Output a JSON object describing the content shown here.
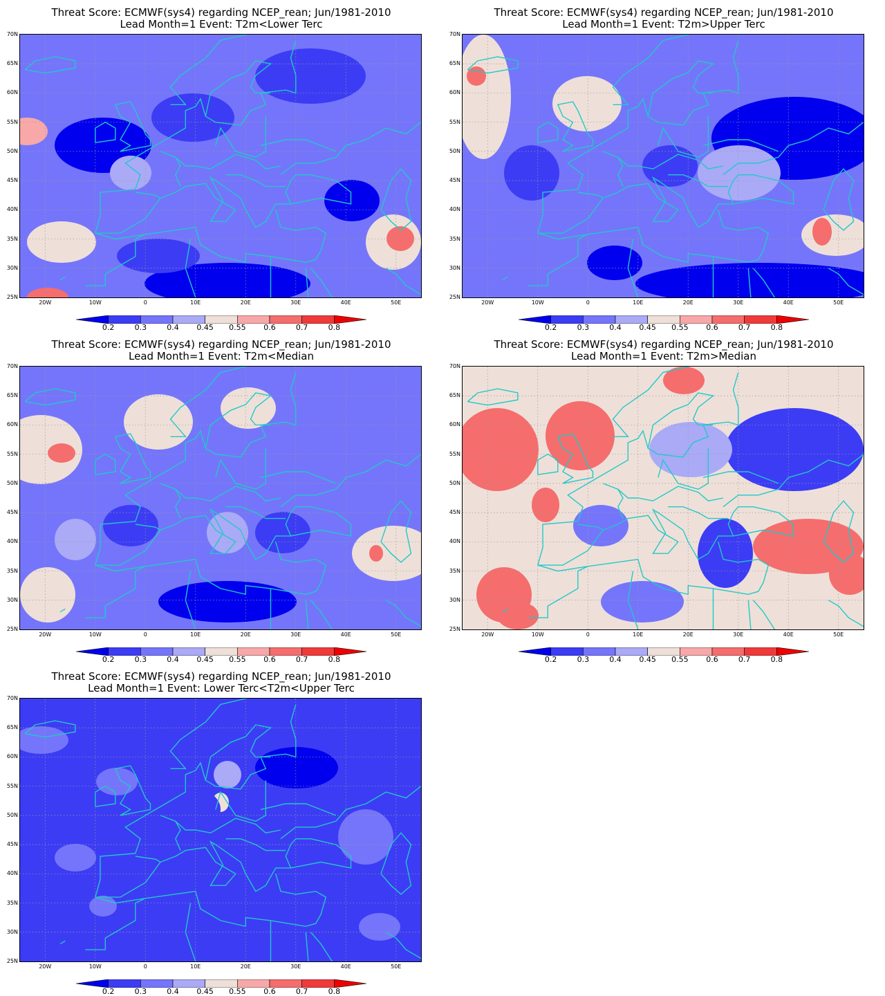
{
  "title_line1": "Threat Score: ECMWF(sys4) regarding NCEP_rean; Jun/1981-2010",
  "lat_labels": [
    "70N",
    "65N",
    "60N",
    "55N",
    "50N",
    "45N",
    "40N",
    "35N",
    "30N",
    "25N"
  ],
  "lon_labels": [
    "20W",
    "10W",
    "0",
    "10E",
    "20E",
    "30E",
    "40E",
    "50E"
  ],
  "colorbar": {
    "levels": [
      "0.2",
      "0.3",
      "0.4",
      "0.45",
      "0.55",
      "0.6",
      "0.7",
      "0.8"
    ],
    "colors": [
      "#0000ee",
      "#3c3cf5",
      "#7575fb",
      "#aaaaf7",
      "#eee0d8",
      "#f8a8a8",
      "#f56d6d",
      "#f03a3a",
      "#ee0000"
    ]
  },
  "coast_color": "#22c8c8",
  "panels": [
    {
      "subtitle": "Lead Month=1  Event: T2m<Lower Terc",
      "base_level": 2
    },
    {
      "subtitle": "Lead Month=1  Event: T2m>Upper Terc",
      "base_level": 2
    },
    {
      "subtitle": "Lead Month=1  Event: T2m<Median",
      "base_level": 2
    },
    {
      "subtitle": "Lead Month=1  Event: T2m>Median",
      "base_level": 4
    },
    {
      "subtitle": "Lead Month=1  Event: Lower Terc<T2m<Upper Terc",
      "base_level": 1
    }
  ]
}
